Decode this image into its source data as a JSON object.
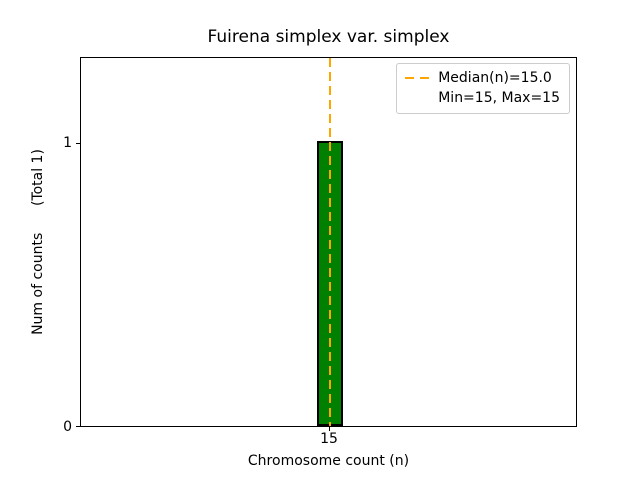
{
  "chart": {
    "title": "Fuirena simplex var. simplex",
    "xlabel": "Chromosome count (n)",
    "ylabel": "Num of counts      (Total 1)",
    "yticks": [
      "0",
      "1"
    ],
    "xticks": [
      "15"
    ],
    "legend": {
      "median_label": "Median(n)=15.0",
      "minmax_label": "Min=15, Max=15"
    },
    "colors": {
      "bar_fill": "#008000",
      "bar_edge": "#000000",
      "median_line": "#FFA500",
      "legend_border": "#cccccc",
      "background": "#ffffff"
    }
  },
  "chart_data": {
    "type": "bar",
    "categories": [
      15
    ],
    "values": [
      1
    ],
    "series": [
      {
        "name": "chromosome-count-histogram",
        "values": [
          1
        ]
      }
    ],
    "title": "Fuirena simplex var. simplex",
    "xlabel": "Chromosome count (n)",
    "ylabel": "Num of counts (Total 1)",
    "ylim": [
      0,
      1.3
    ],
    "yticks": [
      0,
      1
    ],
    "xticks": [
      15
    ],
    "grid": false,
    "legend_position": "upper right",
    "legend_entries": [
      "Median(n)=15.0",
      "Min=15, Max=15"
    ],
    "annotations": {
      "median_n": 15.0,
      "min_n": 15,
      "max_n": 15,
      "total_counts": 1,
      "median_line_x": 15
    }
  }
}
